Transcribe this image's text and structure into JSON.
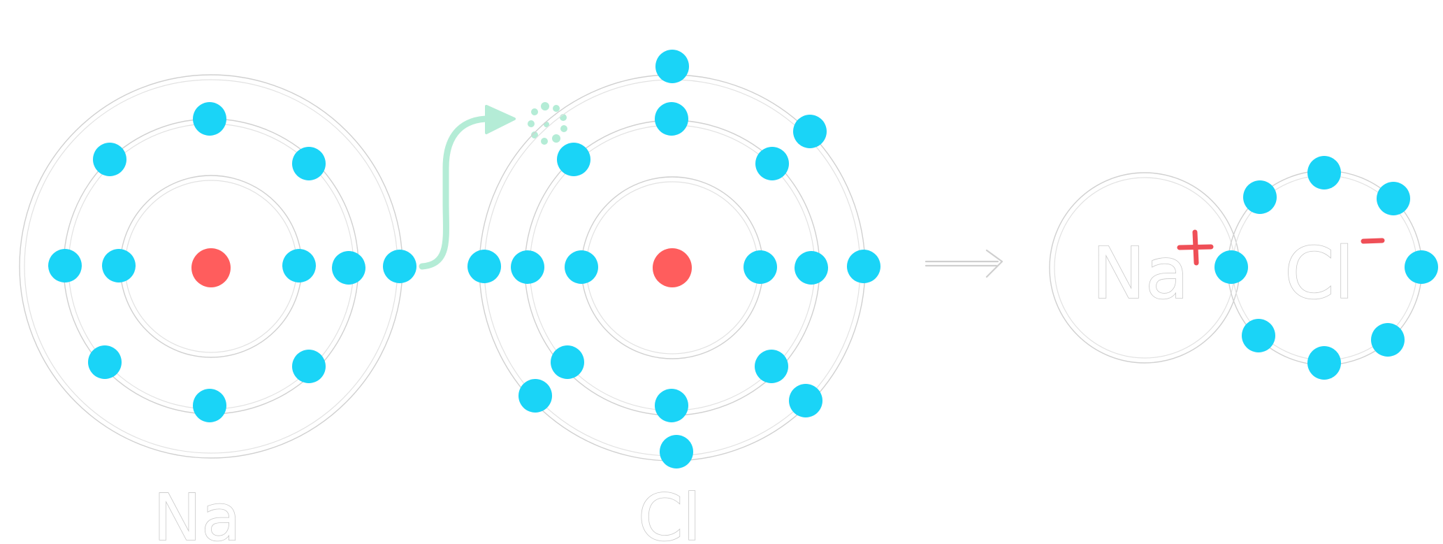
{
  "atoms": [
    {
      "symbol": "Na",
      "electrons_per_shell": [
        2,
        8,
        1
      ]
    },
    {
      "symbol": "Cl",
      "electrons_per_shell": [
        2,
        8,
        7
      ]
    }
  ],
  "ions": [
    {
      "symbol": "Na",
      "charge": "+",
      "outer_electrons": 0
    },
    {
      "symbol": "Cl",
      "charge": "−",
      "outer_electrons": 8
    }
  ],
  "colors": {
    "electron": "#1ad4f7",
    "nucleus": "#ff5d5d",
    "charge": "#ef4f57",
    "transfer_arrow": "#b4ecd6",
    "shell": "#d0d0d0"
  },
  "icons": {
    "transfer": "curved-arrow-icon",
    "reaction": "right-arrow-icon"
  }
}
